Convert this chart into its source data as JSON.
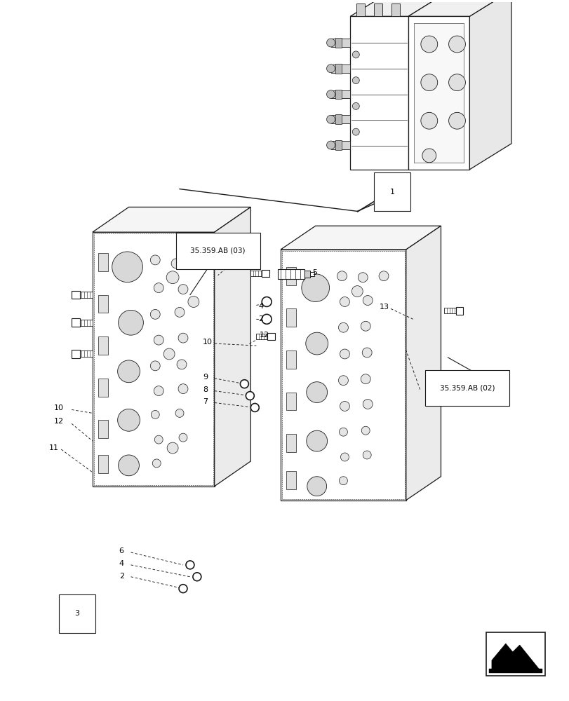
{
  "bg_color": "#ffffff",
  "line_color": "#1a1a1a",
  "fig_width": 8.12,
  "fig_height": 10.0,
  "dpi": 100
}
